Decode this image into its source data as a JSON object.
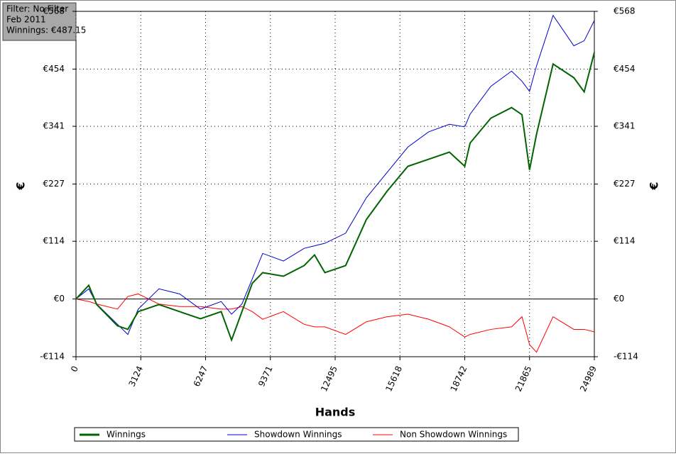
{
  "chart_data": {
    "type": "line",
    "info": [
      "Filter: No Filter",
      "Feb 2011",
      "Winnings: €487.15"
    ],
    "xlabel": "Hands",
    "ylabel": "€",
    "y2label": "€",
    "x": [
      0,
      616,
      1000,
      2000,
      2500,
      3000,
      4000,
      5000,
      6000,
      7000,
      7500,
      8000,
      8500,
      9000,
      10000,
      11000,
      11500,
      12000,
      13000,
      14000,
      15000,
      16000,
      17000,
      18000,
      18742,
      19000,
      20000,
      21000,
      21500,
      21865,
      22200,
      23000,
      24000,
      24500,
      24989
    ],
    "series": [
      {
        "name": "Winnings",
        "color": "#006400",
        "values": [
          0,
          27,
          -11,
          -53,
          -60,
          -25,
          -11,
          -25,
          -39,
          -25,
          -81,
          -25,
          31,
          52,
          45,
          66,
          87,
          52,
          66,
          157,
          213,
          262,
          276,
          290,
          262,
          308,
          357,
          378,
          364,
          255,
          325,
          464,
          437,
          409,
          487
        ]
      },
      {
        "name": "Showdown Winnings",
        "color": "#0000cc",
        "values": [
          0,
          20,
          -10,
          -50,
          -70,
          -20,
          20,
          10,
          -20,
          -5,
          -30,
          -10,
          40,
          90,
          75,
          100,
          105,
          110,
          130,
          200,
          250,
          300,
          330,
          345,
          340,
          365,
          420,
          450,
          430,
          410,
          460,
          560,
          500,
          510,
          550
        ]
      },
      {
        "name": "Non Showdown Winnings",
        "color": "#ff0000",
        "values": [
          0,
          -5,
          -10,
          -20,
          5,
          10,
          -10,
          -15,
          -15,
          -20,
          -20,
          -15,
          -25,
          -40,
          -25,
          -50,
          -55,
          -55,
          -70,
          -45,
          -35,
          -30,
          -40,
          -55,
          -75,
          -70,
          -60,
          -55,
          -35,
          -90,
          -105,
          -35,
          -60,
          -60,
          -65
        ]
      }
    ],
    "xlim": [
      0,
      24989
    ],
    "xticks": [
      0,
      3124,
      6247,
      9371,
      12495,
      15618,
      18742,
      21865,
      24989
    ],
    "ylim": [
      -114,
      568
    ],
    "yticks": [
      {
        "value": -114,
        "label": "-€114"
      },
      {
        "value": 0,
        "label": "€0"
      },
      {
        "value": 114,
        "label": "€114"
      },
      {
        "value": 227,
        "label": "€227"
      },
      {
        "value": 341,
        "label": "€341"
      },
      {
        "value": 454,
        "label": "€454"
      },
      {
        "value": 568,
        "label": "€568"
      }
    ],
    "grid": true
  }
}
